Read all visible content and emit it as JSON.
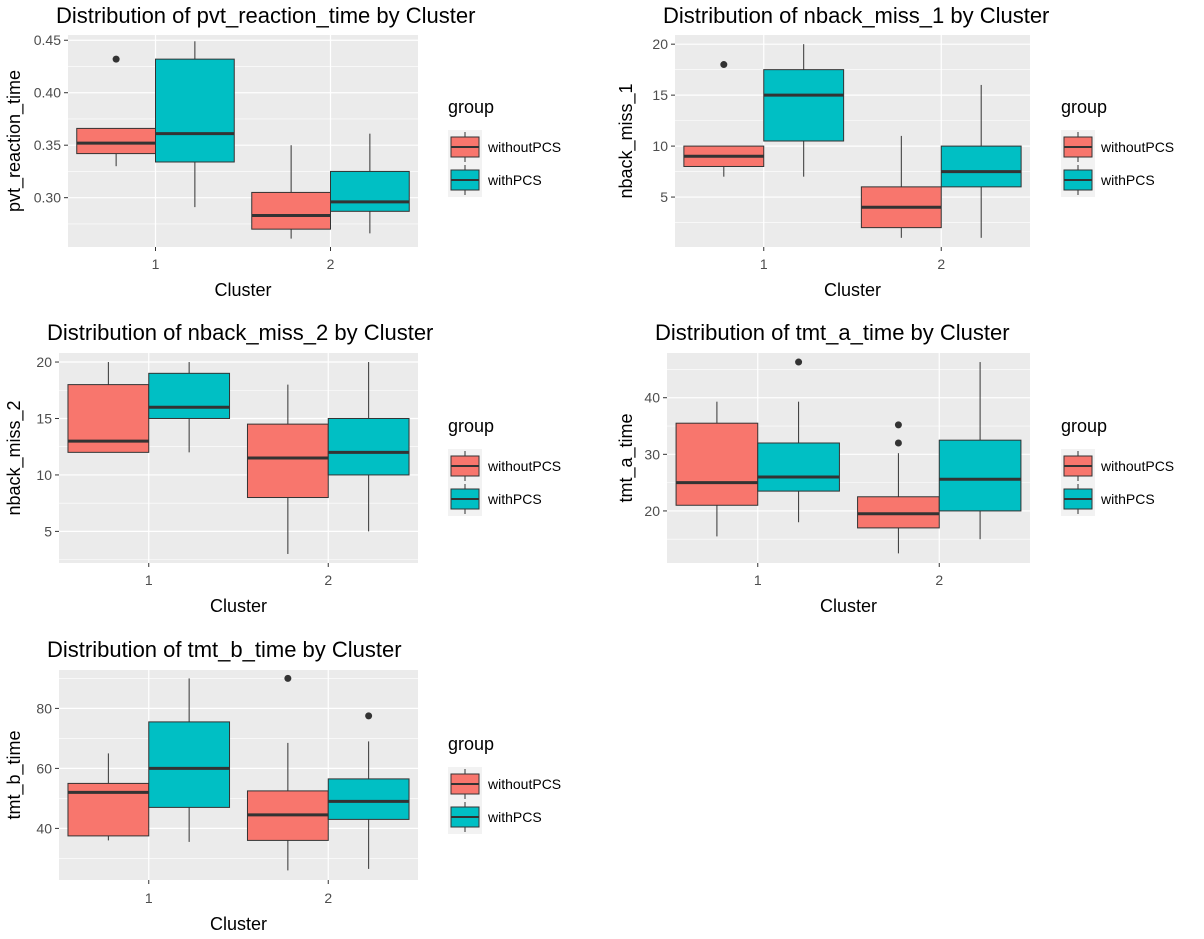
{
  "legend": {
    "title": "group",
    "items": [
      {
        "label": "withoutPCS",
        "color": "#F8766D"
      },
      {
        "label": "withPCS",
        "color": "#00BFC4"
      }
    ]
  },
  "chart_data": [
    {
      "type": "boxplot",
      "title": "Distribution of pvt_reaction_time by Cluster",
      "xlabel": "Cluster",
      "ylabel": "pvt_reaction_time",
      "categories": [
        "1",
        "2"
      ],
      "ylim": [
        0.253,
        0.455
      ],
      "yticks": [
        0.3,
        0.35,
        0.4,
        0.45
      ],
      "ytick_labels": [
        "0.30",
        "0.35",
        "0.40",
        "0.45"
      ],
      "series": [
        {
          "name": "withoutPCS",
          "boxes": [
            {
              "min": 0.33,
              "q1": 0.342,
              "median": 0.352,
              "q3": 0.366,
              "max": 0.366,
              "outliers": [
                0.432
              ]
            },
            {
              "min": 0.261,
              "q1": 0.27,
              "median": 0.283,
              "q3": 0.305,
              "max": 0.35,
              "outliers": []
            }
          ]
        },
        {
          "name": "withPCS",
          "boxes": [
            {
              "min": 0.291,
              "q1": 0.334,
              "median": 0.361,
              "q3": 0.432,
              "max": 0.449,
              "outliers": []
            },
            {
              "min": 0.266,
              "q1": 0.287,
              "median": 0.296,
              "q3": 0.325,
              "max": 0.361,
              "outliers": []
            }
          ]
        }
      ]
    },
    {
      "type": "boxplot",
      "title": "Distribution of nback_miss_1 by Cluster",
      "xlabel": "Cluster",
      "ylabel": "nback_miss_1",
      "categories": [
        "1",
        "2"
      ],
      "ylim": [
        0.1,
        20.9
      ],
      "yticks": [
        5,
        10,
        15,
        20
      ],
      "ytick_labels": [
        "5",
        "10",
        "15",
        "20"
      ],
      "series": [
        {
          "name": "withoutPCS",
          "boxes": [
            {
              "min": 7,
              "q1": 8,
              "median": 9,
              "q3": 10,
              "max": 10,
              "outliers": [
                18
              ]
            },
            {
              "min": 1,
              "q1": 2,
              "median": 4,
              "q3": 6,
              "max": 11,
              "outliers": []
            }
          ]
        },
        {
          "name": "withPCS",
          "boxes": [
            {
              "min": 7,
              "q1": 10.5,
              "median": 15,
              "q3": 17.5,
              "max": 20,
              "outliers": []
            },
            {
              "min": 1,
              "q1": 6,
              "median": 7.5,
              "q3": 10,
              "max": 16,
              "outliers": []
            }
          ]
        }
      ]
    },
    {
      "type": "boxplot",
      "title": "Distribution of nback_miss_2 by Cluster",
      "xlabel": "Cluster",
      "ylabel": "nback_miss_2",
      "categories": [
        "1",
        "2"
      ],
      "ylim": [
        2.2,
        20.8
      ],
      "yticks": [
        5,
        10,
        15,
        20
      ],
      "ytick_labels": [
        "5",
        "10",
        "15",
        "20"
      ],
      "series": [
        {
          "name": "withoutPCS",
          "boxes": [
            {
              "min": 12,
              "q1": 12,
              "median": 13,
              "q3": 18,
              "max": 20,
              "outliers": []
            },
            {
              "min": 3,
              "q1": 8,
              "median": 11.5,
              "q3": 14.5,
              "max": 18,
              "outliers": []
            }
          ]
        },
        {
          "name": "withPCS",
          "boxes": [
            {
              "min": 12,
              "q1": 15,
              "median": 16,
              "q3": 19,
              "max": 20,
              "outliers": []
            },
            {
              "min": 5,
              "q1": 10,
              "median": 12,
              "q3": 15,
              "max": 20,
              "outliers": []
            }
          ]
        }
      ]
    },
    {
      "type": "boxplot",
      "title": "Distribution of tmt_a_time by Cluster",
      "xlabel": "Cluster",
      "ylabel": "tmt_a_time",
      "categories": [
        "1",
        "2"
      ],
      "ylim": [
        10.8,
        47.9
      ],
      "yticks": [
        20,
        30,
        40
      ],
      "ytick_labels": [
        "20",
        "30",
        "40"
      ],
      "series": [
        {
          "name": "withoutPCS",
          "boxes": [
            {
              "min": 15.5,
              "q1": 21,
              "median": 25,
              "q3": 35.5,
              "max": 39.3,
              "outliers": []
            },
            {
              "min": 12.5,
              "q1": 17,
              "median": 19.5,
              "q3": 22.5,
              "max": 30.2,
              "outliers": [
                32,
                35.2
              ]
            }
          ]
        },
        {
          "name": "withPCS",
          "boxes": [
            {
              "min": 18,
              "q1": 23.5,
              "median": 26,
              "q3": 32,
              "max": 39.3,
              "outliers": [
                46.3
              ]
            },
            {
              "min": 15,
              "q1": 20,
              "median": 25.6,
              "q3": 32.5,
              "max": 46.3,
              "outliers": []
            }
          ]
        }
      ]
    },
    {
      "type": "boxplot",
      "title": "Distribution of tmt_b_time by Cluster",
      "xlabel": "Cluster",
      "ylabel": "tmt_b_time",
      "categories": [
        "1",
        "2"
      ],
      "ylim": [
        22.8,
        92.8
      ],
      "yticks": [
        40,
        60,
        80
      ],
      "ytick_labels": [
        "40",
        "60",
        "80"
      ],
      "series": [
        {
          "name": "withoutPCS",
          "boxes": [
            {
              "min": 36,
              "q1": 37.5,
              "median": 52,
              "q3": 55,
              "max": 65,
              "outliers": []
            },
            {
              "min": 26,
              "q1": 36,
              "median": 44.5,
              "q3": 52.5,
              "max": 68.5,
              "outliers": [
                90
              ]
            }
          ]
        },
        {
          "name": "withPCS",
          "boxes": [
            {
              "min": 35.5,
              "q1": 47,
              "median": 60,
              "q3": 75.5,
              "max": 90,
              "outliers": []
            },
            {
              "min": 26.5,
              "q1": 43,
              "median": 49,
              "q3": 56.5,
              "max": 69,
              "outliers": [
                77.5
              ]
            }
          ]
        }
      ]
    }
  ]
}
